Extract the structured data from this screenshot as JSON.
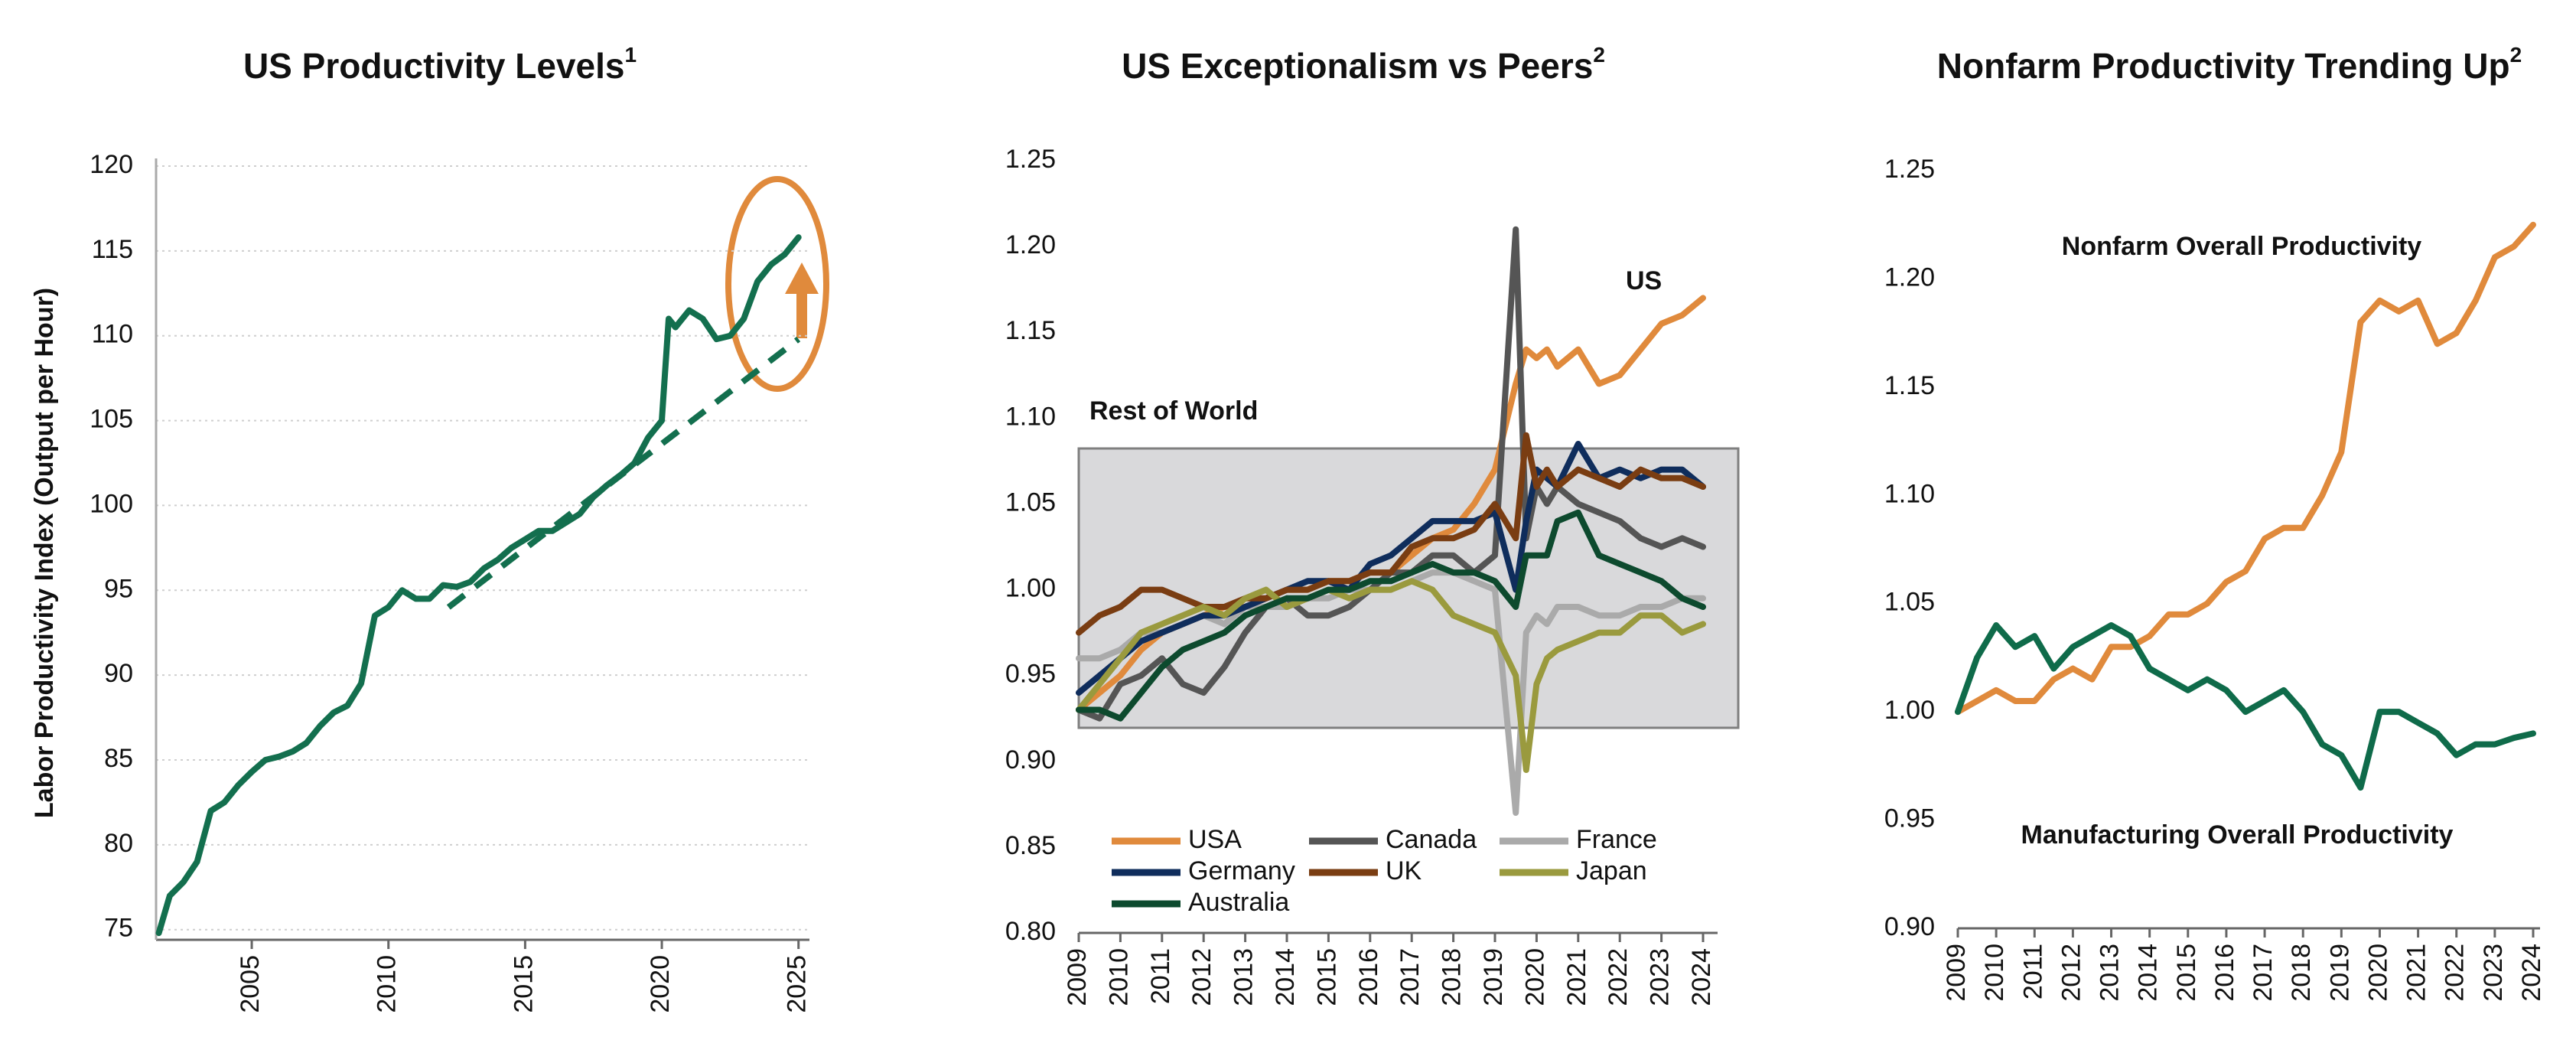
{
  "chart_data": [
    {
      "type": "line",
      "title": "US Productivity Levels",
      "title_note": "1",
      "y_label": "Labor Productivity Index (Output per Hour)",
      "xlim": [
        2001.5,
        2025.4
      ],
      "xticks": [
        2005,
        2010,
        2015,
        2020,
        2025
      ],
      "ylim": [
        74.4,
        120
      ],
      "yticks": [
        75,
        80,
        85,
        90,
        95,
        100,
        105,
        110,
        115,
        120
      ],
      "grid": true,
      "series": [
        {
          "color": "#136f4e",
          "x": [
            2001.6,
            2002,
            2002.5,
            2003,
            2003.5,
            2004,
            2004.5,
            2005,
            2005.5,
            2006,
            2006.5,
            2007,
            2007.5,
            2008,
            2008.5,
            2009,
            2009.5,
            2010,
            2010.5,
            2011,
            2011.5,
            2012,
            2012.5,
            2013,
            2013.5,
            2014,
            2014.5,
            2015,
            2015.5,
            2016,
            2016.5,
            2017,
            2017.5,
            2018,
            2018.5,
            2019,
            2019.5,
            2020,
            2020.25,
            2020.5,
            2021,
            2021.5,
            2022,
            2022.5,
            2023,
            2023.5,
            2024,
            2024.5,
            2025
          ],
          "values": [
            74.8,
            77,
            77.8,
            79,
            82,
            82.5,
            83.5,
            84.3,
            85,
            85.2,
            85.5,
            86,
            87,
            87.8,
            88.2,
            89.5,
            93.5,
            94,
            95,
            94.5,
            94.5,
            95.3,
            95.2,
            95.5,
            96.3,
            96.8,
            97.5,
            98,
            98.5,
            98.5,
            99,
            99.5,
            100.5,
            101.2,
            101.8,
            102.5,
            104,
            105,
            111,
            110.5,
            111.5,
            111,
            109.8,
            110,
            111,
            113.2,
            114.2,
            114.8,
            115.8
          ]
        },
        {
          "color": "#136f4e",
          "dashed": true,
          "x": [
            2012.2,
            2025
          ],
          "values": [
            94,
            109.8
          ]
        }
      ]
    },
    {
      "type": "line",
      "title": "US Exceptionalism vs Peers",
      "title_note": "2",
      "xlim": [
        2009,
        2024
      ],
      "xticks": [
        2009,
        2010,
        2011,
        2012,
        2013,
        2014,
        2015,
        2016,
        2017,
        2018,
        2019,
        2020,
        2021,
        2022,
        2023,
        2024
      ],
      "ylim": [
        0.8,
        1.25
      ],
      "yticks": [
        {
          "value": 0.8,
          "label": "0.80"
        },
        0.85,
        {
          "value": 0.9,
          "label": "0.90"
        },
        0.95,
        {
          "value": 1.0,
          "label": "1.00"
        },
        1.05,
        {
          "value": 1.1,
          "label": "1.10"
        },
        1.15,
        {
          "value": 1.2,
          "label": "1.20"
        },
        1.25
      ],
      "legend": true,
      "annotations": [
        {
          "text": "US",
          "color": "#e08a3c"
        },
        {
          "text": "Rest of World",
          "color": "#a6a6a6"
        }
      ],
      "x": [
        2009,
        2009.5,
        2010,
        2010.5,
        2011,
        2011.5,
        2012,
        2012.5,
        2013,
        2013.5,
        2014,
        2014.5,
        2015,
        2015.5,
        2016,
        2016.5,
        2017,
        2017.5,
        2018,
        2018.5,
        2019,
        2019.5,
        2019.75,
        2020,
        2020.25,
        2020.5,
        2021,
        2021.5,
        2022,
        2022.5,
        2023,
        2023.5,
        2024
      ],
      "series": [
        {
          "name": "USA",
          "color": "#e08a3c",
          "values": [
            0.93,
            0.94,
            0.95,
            0.965,
            0.975,
            0.98,
            0.985,
            0.99,
            0.99,
            0.995,
            1.0,
            1.0,
            1.005,
            1.005,
            1.01,
            1.01,
            1.02,
            1.03,
            1.035,
            1.05,
            1.07,
            1.12,
            1.14,
            1.135,
            1.14,
            1.13,
            1.14,
            1.12,
            1.125,
            1.14,
            1.155,
            1.16,
            1.17
          ]
        },
        {
          "name": "Canada",
          "color": "#555555",
          "values": [
            0.93,
            0.925,
            0.945,
            0.95,
            0.96,
            0.945,
            0.94,
            0.955,
            0.975,
            0.99,
            0.995,
            0.985,
            0.985,
            0.99,
            1.0,
            1.01,
            1.01,
            1.02,
            1.02,
            1.01,
            1.02,
            1.21,
            1.03,
            1.06,
            1.05,
            1.06,
            1.05,
            1.045,
            1.04,
            1.03,
            1.025,
            1.03,
            1.025
          ]
        },
        {
          "name": "France",
          "color": "#aaaaaa",
          "values": [
            0.96,
            0.96,
            0.965,
            0.975,
            0.975,
            0.98,
            0.985,
            0.98,
            0.99,
            0.99,
            0.99,
            0.995,
            0.995,
            1.0,
            1.0,
            1.0,
            1.005,
            1.01,
            1.01,
            1.005,
            1.0,
            0.87,
            0.975,
            0.985,
            0.98,
            0.99,
            0.99,
            0.985,
            0.985,
            0.99,
            0.99,
            0.995,
            0.995
          ]
        },
        {
          "name": "Germany",
          "color": "#0f2d5c",
          "values": [
            0.94,
            0.95,
            0.96,
            0.97,
            0.975,
            0.98,
            0.985,
            0.985,
            0.99,
            0.995,
            1.0,
            1.005,
            1.005,
            1.0,
            1.015,
            1.02,
            1.03,
            1.04,
            1.04,
            1.04,
            1.045,
            1.0,
            1.04,
            1.07,
            1.065,
            1.06,
            1.085,
            1.065,
            1.07,
            1.065,
            1.07,
            1.07,
            1.06
          ]
        },
        {
          "name": "UK",
          "color": "#7a3d12",
          "values": [
            0.975,
            0.985,
            0.99,
            1.0,
            1.0,
            0.995,
            0.99,
            0.99,
            0.995,
            0.995,
            1.0,
            1.0,
            1.005,
            1.005,
            1.01,
            1.01,
            1.025,
            1.03,
            1.03,
            1.035,
            1.05,
            1.03,
            1.09,
            1.06,
            1.07,
            1.06,
            1.07,
            1.065,
            1.06,
            1.07,
            1.065,
            1.065,
            1.06
          ]
        },
        {
          "name": "Japan",
          "color": "#9a9a3e",
          "values": [
            0.93,
            0.945,
            0.96,
            0.975,
            0.98,
            0.985,
            0.99,
            0.985,
            0.995,
            1.0,
            0.99,
            0.995,
            1.0,
            0.995,
            1.0,
            1.0,
            1.005,
            1.0,
            0.985,
            0.98,
            0.975,
            0.95,
            0.895,
            0.945,
            0.96,
            0.965,
            0.97,
            0.975,
            0.975,
            0.985,
            0.985,
            0.975,
            0.98
          ]
        },
        {
          "name": "Australia",
          "color": "#0d4a2e",
          "values": [
            0.93,
            0.93,
            0.925,
            0.94,
            0.955,
            0.965,
            0.97,
            0.975,
            0.985,
            0.99,
            0.995,
            0.995,
            1.0,
            1.0,
            1.005,
            1.005,
            1.01,
            1.015,
            1.01,
            1.01,
            1.005,
            0.99,
            1.02,
            1.02,
            1.02,
            1.04,
            1.045,
            1.02,
            1.015,
            1.01,
            1.005,
            0.995,
            0.99
          ]
        }
      ]
    },
    {
      "type": "line",
      "title": "Nonfarm Productivity Trending Up",
      "title_note": "2",
      "xlim": [
        2009,
        2024
      ],
      "xticks": [
        2009,
        2010,
        2011,
        2012,
        2013,
        2014,
        2015,
        2016,
        2017,
        2018,
        2019,
        2020,
        2021,
        2022,
        2023,
        2024
      ],
      "ylim": [
        0.9,
        1.25
      ],
      "yticks": [
        {
          "value": 0.9,
          "label": "0.90"
        },
        0.95,
        {
          "value": 1.0,
          "label": "1.00"
        },
        1.05,
        {
          "value": 1.1,
          "label": "1.10"
        },
        1.15,
        {
          "value": 1.2,
          "label": "1.20"
        },
        1.25
      ],
      "legend": "inline",
      "x": [
        2009,
        2009.5,
        2010,
        2010.5,
        2011,
        2011.5,
        2012,
        2012.5,
        2013,
        2013.5,
        2014,
        2014.5,
        2015,
        2015.5,
        2016,
        2016.5,
        2017,
        2017.5,
        2018,
        2018.5,
        2019,
        2019.5,
        2020,
        2020.5,
        2021,
        2021.5,
        2022,
        2022.5,
        2023,
        2023.5,
        2024
      ],
      "series": [
        {
          "name": "Nonfarm Overall Productivity",
          "color": "#e08a3c",
          "values": [
            1.0,
            1.005,
            1.01,
            1.005,
            1.005,
            1.015,
            1.02,
            1.015,
            1.03,
            1.03,
            1.035,
            1.045,
            1.045,
            1.05,
            1.06,
            1.065,
            1.08,
            1.085,
            1.085,
            1.1,
            1.12,
            1.18,
            1.19,
            1.185,
            1.19,
            1.17,
            1.175,
            1.19,
            1.21,
            1.215,
            1.225
          ]
        },
        {
          "name": "Manufacturing Overall Productivity",
          "color": "#0f6b4a",
          "values": [
            1.0,
            1.025,
            1.04,
            1.03,
            1.035,
            1.02,
            1.03,
            1.035,
            1.04,
            1.035,
            1.02,
            1.015,
            1.01,
            1.015,
            1.01,
            1.0,
            1.005,
            1.01,
            1.0,
            0.985,
            0.98,
            0.965,
            1.0,
            1.0,
            0.995,
            0.99,
            0.98,
            0.985,
            0.985,
            0.988,
            0.99
          ]
        }
      ]
    }
  ]
}
